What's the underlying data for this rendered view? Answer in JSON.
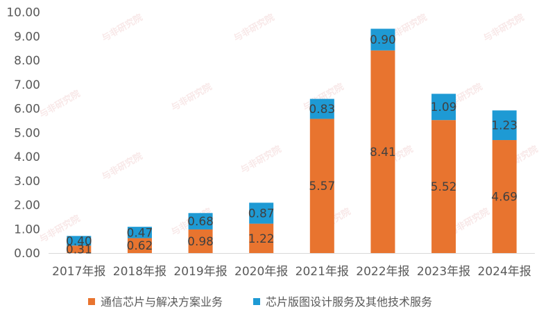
{
  "chart_data": {
    "type": "bar",
    "stacked": true,
    "categories": [
      "2017年报",
      "2018年报",
      "2019年报",
      "2020年报",
      "2021年报",
      "2022年报",
      "2023年报",
      "2024年报"
    ],
    "series": [
      {
        "name": "通信芯片与解决方案业务",
        "color": "#E8742F",
        "values": [
          0.31,
          0.62,
          0.98,
          1.22,
          5.57,
          8.41,
          5.52,
          4.69
        ],
        "labels": [
          "0.31",
          "0.62",
          "0.98",
          "1.22",
          "5.57",
          "8.41",
          "5.52",
          "4.69"
        ]
      },
      {
        "name": "芯片版图设计服务及其他技术服务",
        "color": "#1E9AD4",
        "values": [
          0.4,
          0.47,
          0.68,
          0.87,
          0.83,
          0.9,
          1.09,
          1.23
        ],
        "labels": [
          "0.40",
          "0.47",
          "0.68",
          "0.87",
          "0.83",
          "0.90",
          "1.09",
          "1.23"
        ]
      }
    ],
    "ylim": [
      0,
      10
    ],
    "yticks": [
      "0.00",
      "1.00",
      "2.00",
      "3.00",
      "4.00",
      "5.00",
      "6.00",
      "7.00",
      "8.00",
      "9.00",
      "10.00"
    ],
    "grid": false,
    "legend_position": "bottom"
  },
  "watermark": "与非研究院"
}
